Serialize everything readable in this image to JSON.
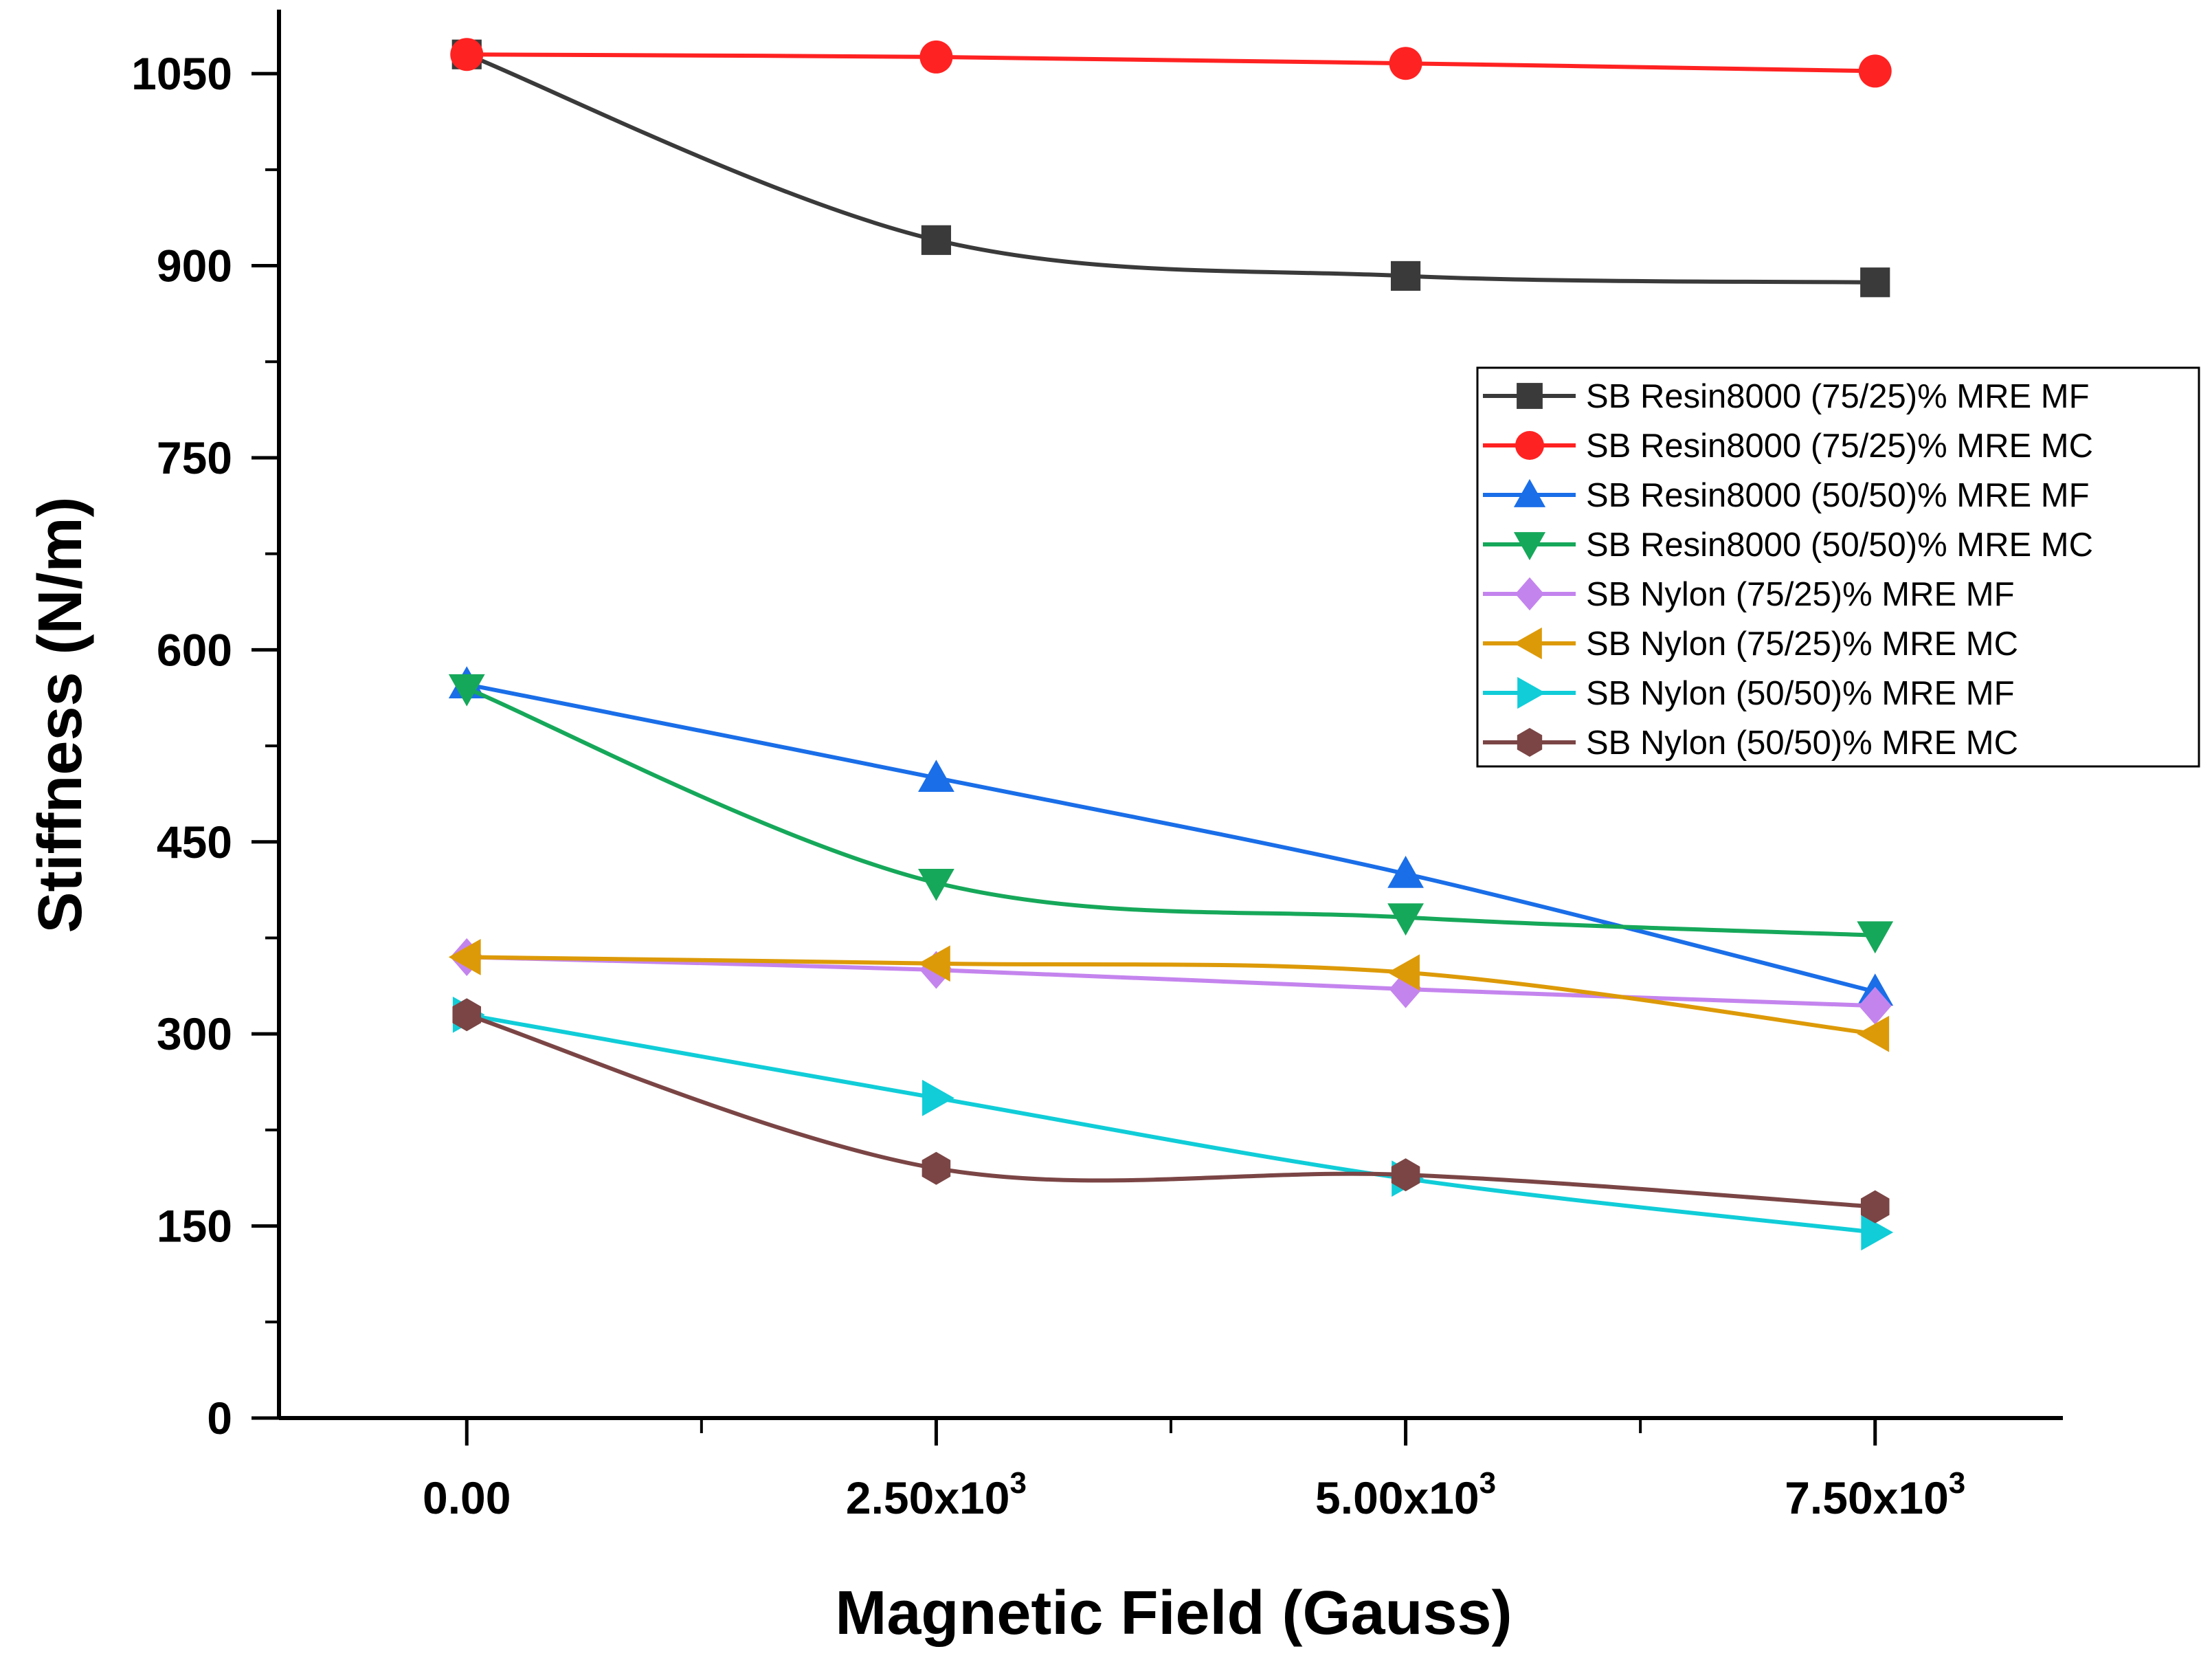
{
  "chart_data": {
    "type": "line",
    "title": "",
    "xlabel": "Magnetic Field (Gauss)",
    "ylabel": "Stiffness (N/m)",
    "x": [
      0,
      2500,
      5000,
      7500
    ],
    "xlim": [
      -1000,
      8500
    ],
    "ylim": [
      0,
      1100
    ],
    "x_ticks": [
      {
        "value": 0,
        "base": "0.00",
        "exp": ""
      },
      {
        "value": 2500,
        "base": "2.50x10",
        "exp": "3"
      },
      {
        "value": 5000,
        "base": "5.00x10",
        "exp": "3"
      },
      {
        "value": 7500,
        "base": "7.50x10",
        "exp": "3"
      }
    ],
    "x_minor_ticks": [
      1250,
      3750,
      6250
    ],
    "y_ticks": [
      {
        "value": 0,
        "label": "0"
      },
      {
        "value": 150,
        "label": "150"
      },
      {
        "value": 300,
        "label": "300"
      },
      {
        "value": 450,
        "label": "450"
      },
      {
        "value": 600,
        "label": "600"
      },
      {
        "value": 750,
        "label": "750"
      },
      {
        "value": 900,
        "label": "900"
      },
      {
        "value": 1050,
        "label": "1050"
      }
    ],
    "y_minor_ticks": [
      75,
      225,
      375,
      525,
      675,
      825,
      975
    ],
    "legend_position": "right",
    "series": [
      {
        "name": "SB Resin8000 (75/25)% MRE MF",
        "values": [
          1065,
          920,
          892,
          887
        ],
        "color": "#3a3a3a",
        "marker": "square"
      },
      {
        "name": "SB Resin8000 (75/25)% MRE MC",
        "values": [
          1065,
          1063,
          1058,
          1052
        ],
        "color": "#ff2222",
        "marker": "circle"
      },
      {
        "name": "SB Resin8000 (50/50)% MRE MF",
        "values": [
          573,
          500,
          425,
          333
        ],
        "color": "#1a6ee8",
        "marker": "triangle-up"
      },
      {
        "name": "SB Resin8000 (50/50)% MRE MC",
        "values": [
          570,
          418,
          391,
          377
        ],
        "color": "#16a85a",
        "marker": "triangle-down"
      },
      {
        "name": "SB Nylon (75/25)% MRE MF",
        "values": [
          360,
          350,
          335,
          322
        ],
        "color": "#c484ee",
        "marker": "diamond"
      },
      {
        "name": "SB Nylon (75/25)% MRE MC",
        "values": [
          360,
          355,
          348,
          300
        ],
        "color": "#dd9a08",
        "marker": "triangle-left"
      },
      {
        "name": "SB Nylon (50/50)% MRE MF",
        "values": [
          315,
          250,
          187,
          145
        ],
        "color": "#10cdd8",
        "marker": "triangle-right"
      },
      {
        "name": "SB Nylon (50/50)% MRE MC",
        "values": [
          315,
          195,
          190,
          165
        ],
        "color": "#7b4545",
        "marker": "hexagon"
      }
    ]
  }
}
